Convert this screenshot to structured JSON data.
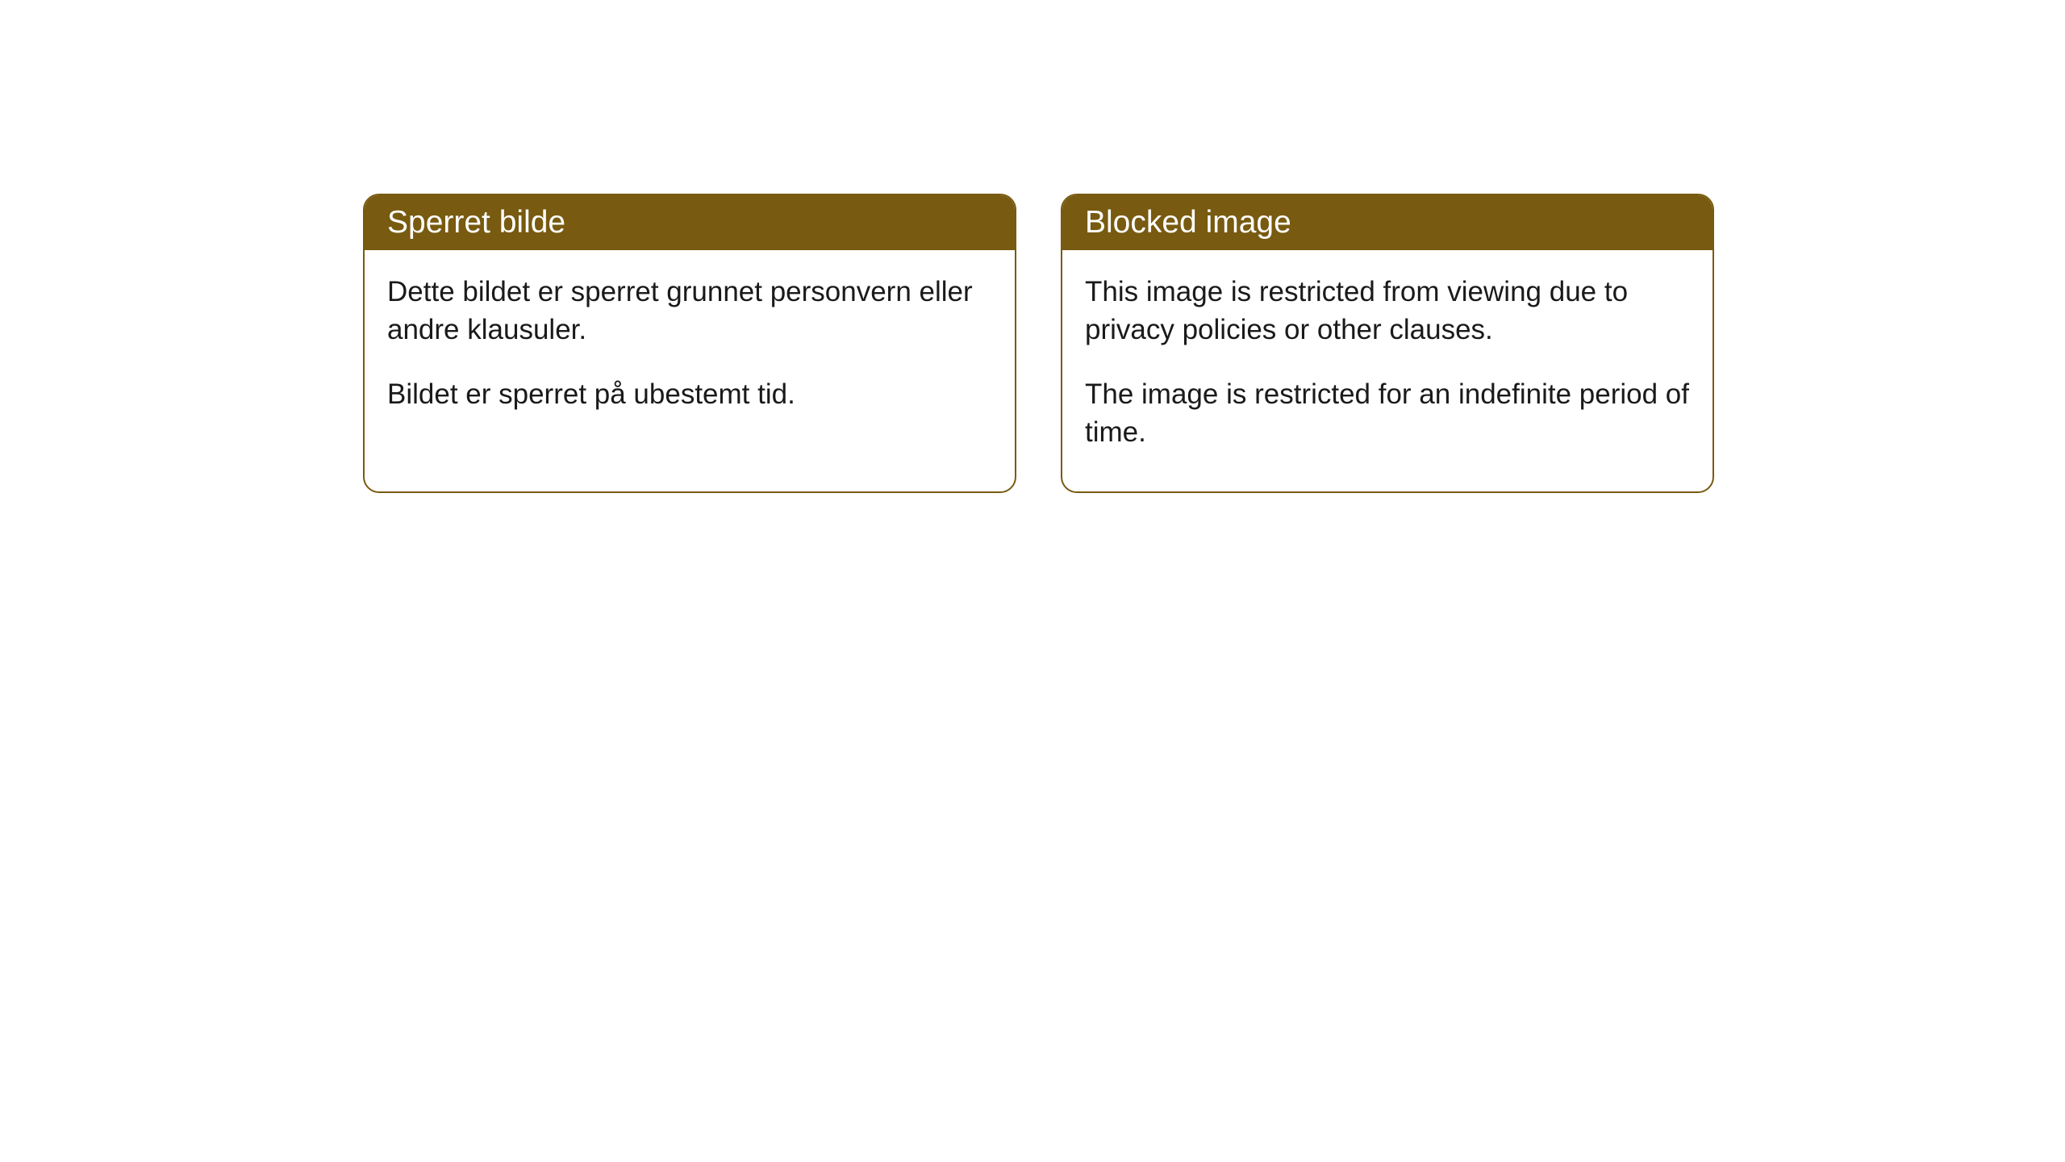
{
  "cards": [
    {
      "title": "Sperret bilde",
      "paragraph1": "Dette bildet er sperret grunnet personvern eller andre klausuler.",
      "paragraph2": "Bildet er sperret på ubestemt tid."
    },
    {
      "title": "Blocked image",
      "paragraph1": "This image is restricted from viewing due to privacy policies or other clauses.",
      "paragraph2": "The image is restricted for an indefinite period of time."
    }
  ],
  "style": {
    "header_background": "#785a10",
    "header_text_color": "#ffffff",
    "border_color": "#785a10",
    "body_background": "#ffffff",
    "body_text_color": "#1a1a1a",
    "border_radius": 20,
    "header_fontsize": 39,
    "body_fontsize": 35
  }
}
